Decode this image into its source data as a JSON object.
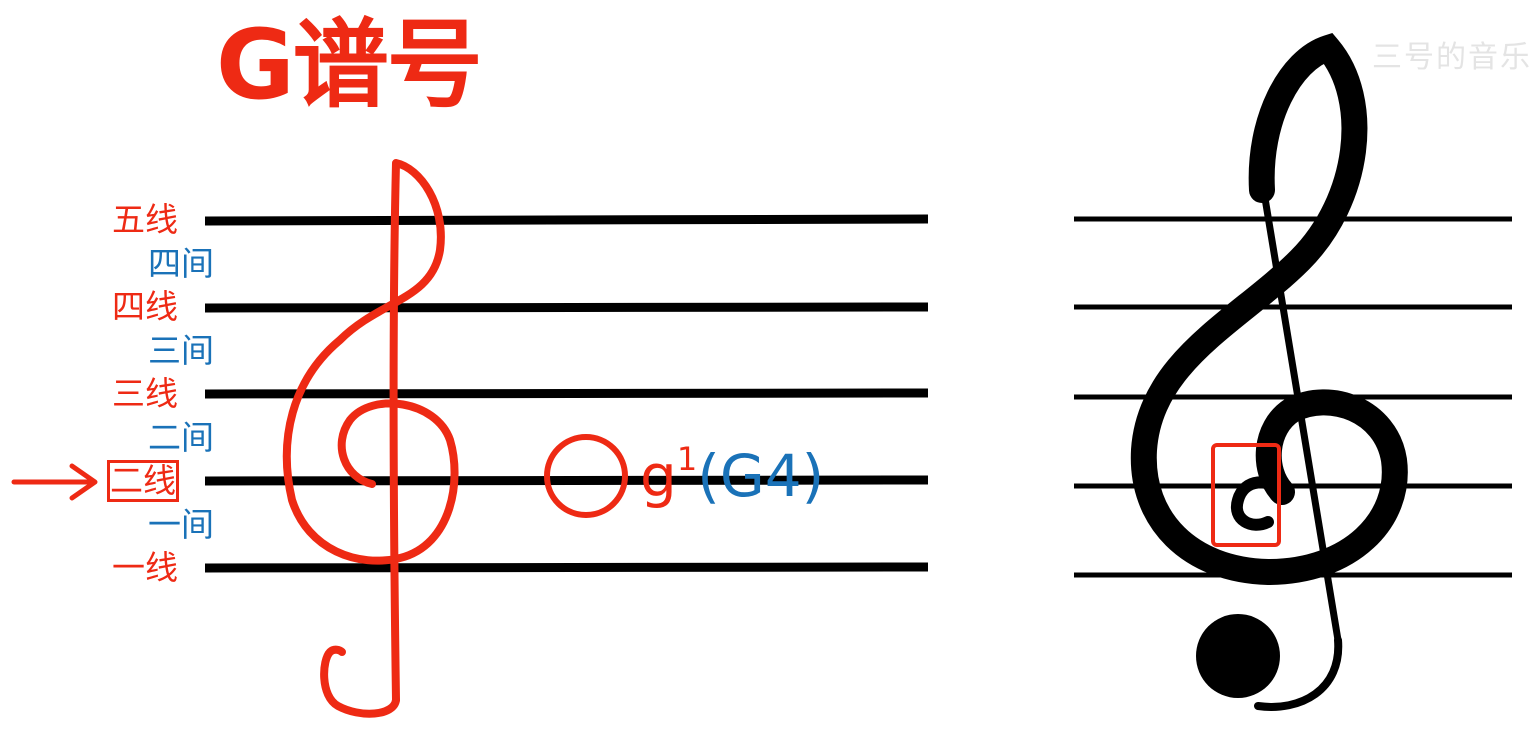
{
  "title": "G谱号",
  "colors": {
    "red": "#ee2a14",
    "blue": "#1a72b8",
    "black": "#000000",
    "watermark": "#e4e4e4"
  },
  "staff_labels": {
    "line5": "五线",
    "space4": "四间",
    "line4": "四线",
    "space3": "三间",
    "line3": "三线",
    "space2": "二间",
    "line2": "二线",
    "space1": "一间",
    "line1": "一线"
  },
  "highlighted_line": "line2",
  "note": {
    "name": "g",
    "superscript": "1",
    "alt_name": "(G4)"
  },
  "watermark": "三号的音乐",
  "icons": [
    "arrow-right-icon",
    "hand-drawn-treble-clef-icon",
    "treble-clef-icon",
    "whole-note-icon"
  ]
}
